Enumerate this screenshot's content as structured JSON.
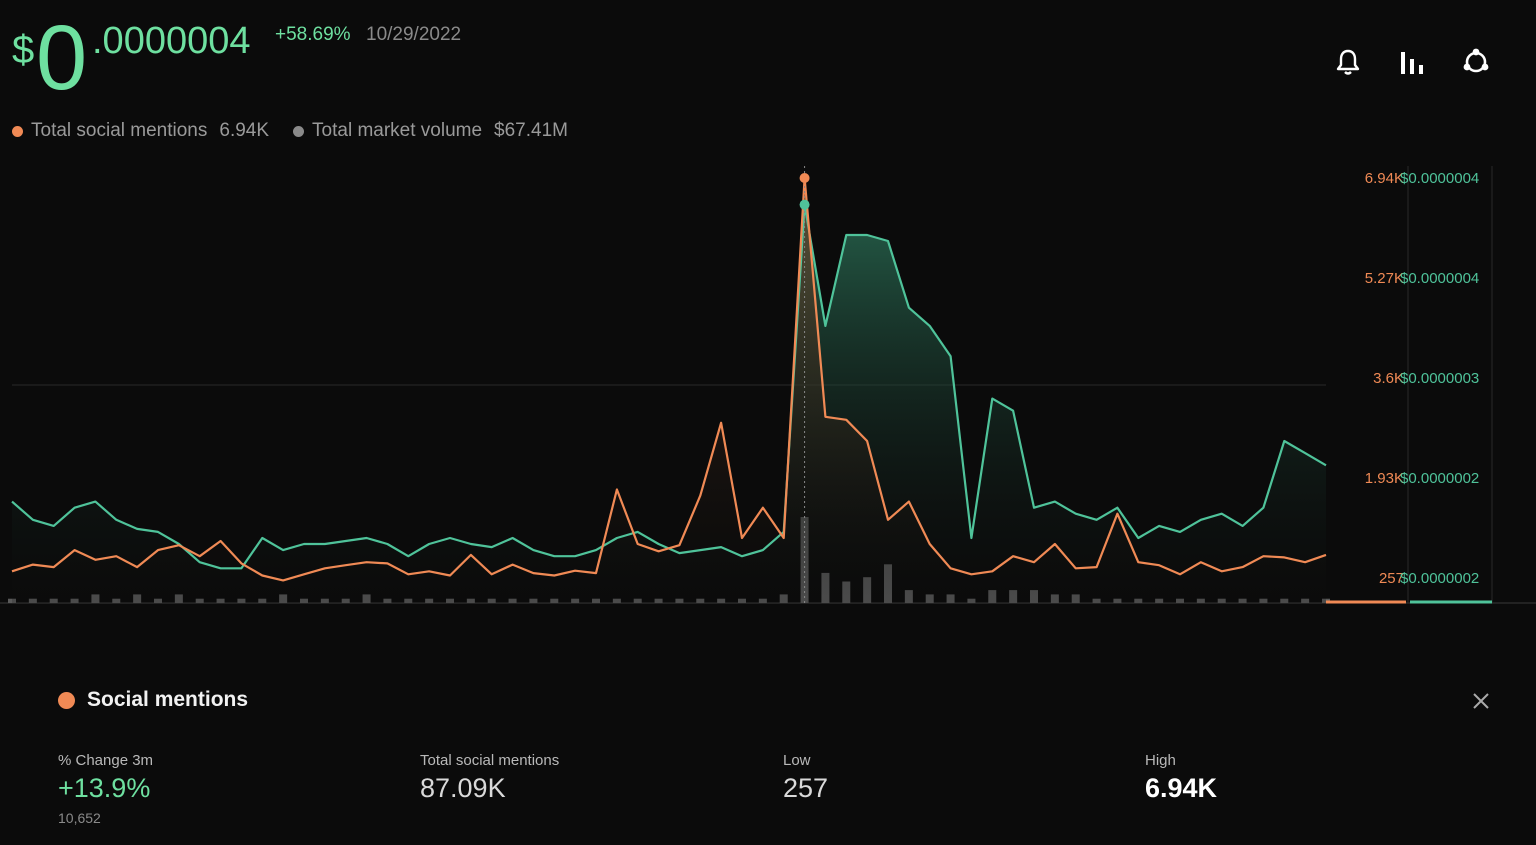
{
  "price": {
    "currency": "$",
    "integer": "0",
    "decimal": ".0000004",
    "change": "+58.69%",
    "date": "10/29/2022"
  },
  "toolbar": {
    "icons": [
      "bell-icon",
      "bar-chart-icon",
      "share-icon"
    ]
  },
  "legend": {
    "items": [
      {
        "label": "Total social mentions",
        "value": "6.94K",
        "color": "#f08a55"
      },
      {
        "label": "Total market volume",
        "value": "$67.41M",
        "color": "#8a8a8a"
      }
    ]
  },
  "chart_data": {
    "type": "line",
    "right_axis_mentions": [
      "6.94K",
      "5.27K",
      "3.6K",
      "1.93K",
      "257"
    ],
    "right_axis_price": [
      "$0.0000004",
      "$0.0000004",
      "$0.0000003",
      "$0.0000002",
      "$0.0000002"
    ],
    "ylim_mentions": [
      257,
      6940
    ],
    "series": [
      {
        "name": "Total social mentions",
        "color": "#f08a55",
        "values": [
          450,
          560,
          520,
          800,
          640,
          700,
          520,
          800,
          880,
          700,
          950,
          580,
          380,
          300,
          400,
          500,
          550,
          600,
          580,
          400,
          450,
          380,
          720,
          400,
          560,
          420,
          380,
          460,
          420,
          1800,
          900,
          780,
          880,
          1700,
          2900,
          1000,
          1500,
          1000,
          6940,
          3000,
          2950,
          2600,
          1300,
          1600,
          900,
          500,
          400,
          450,
          700,
          600,
          900,
          500,
          520,
          1400,
          600,
          550,
          400,
          600,
          450,
          520,
          700,
          680,
          600,
          720
        ]
      },
      {
        "name": "Price",
        "color": "#4fc39a",
        "values": [
          1600,
          1300,
          1200,
          1500,
          1600,
          1300,
          1150,
          1100,
          900,
          600,
          500,
          500,
          1000,
          800,
          900,
          900,
          950,
          1000,
          900,
          700,
          900,
          1000,
          900,
          850,
          1000,
          800,
          700,
          700,
          800,
          1000,
          1100,
          900,
          750,
          800,
          850,
          700,
          800,
          1100,
          6500,
          4500,
          6000,
          6000,
          5900,
          4800,
          4500,
          4000,
          1000,
          3300,
          3100,
          1500,
          1600,
          1400,
          1300,
          1500,
          1000,
          1200,
          1100,
          1300,
          1400,
          1200,
          1500,
          2600,
          2400,
          2200
        ]
      },
      {
        "name": "Total market volume",
        "color": "#6a6a6a",
        "values": [
          1,
          1,
          1,
          1,
          2,
          1,
          2,
          1,
          2,
          1,
          1,
          1,
          1,
          2,
          1,
          1,
          1,
          2,
          1,
          1,
          1,
          1,
          1,
          1,
          1,
          1,
          1,
          1,
          1,
          1,
          1,
          1,
          1,
          1,
          1,
          1,
          1,
          2,
          20,
          7,
          5,
          6,
          9,
          3,
          2,
          2,
          1,
          3,
          3,
          3,
          2,
          2,
          1,
          1,
          1,
          1,
          1,
          1,
          1,
          1,
          1,
          1,
          1,
          1
        ]
      }
    ],
    "grid": true
  },
  "panel": {
    "title": "Social mentions",
    "close_icon": "close-icon",
    "stats": [
      {
        "label": "% Change 3m",
        "value": "+13.9%",
        "sub": "10,652",
        "color": "#6ee0a0"
      },
      {
        "label": "Total social mentions",
        "value": "87.09K"
      },
      {
        "label": "Low",
        "value": "257"
      },
      {
        "label": "High",
        "value": "6.94K"
      }
    ]
  }
}
